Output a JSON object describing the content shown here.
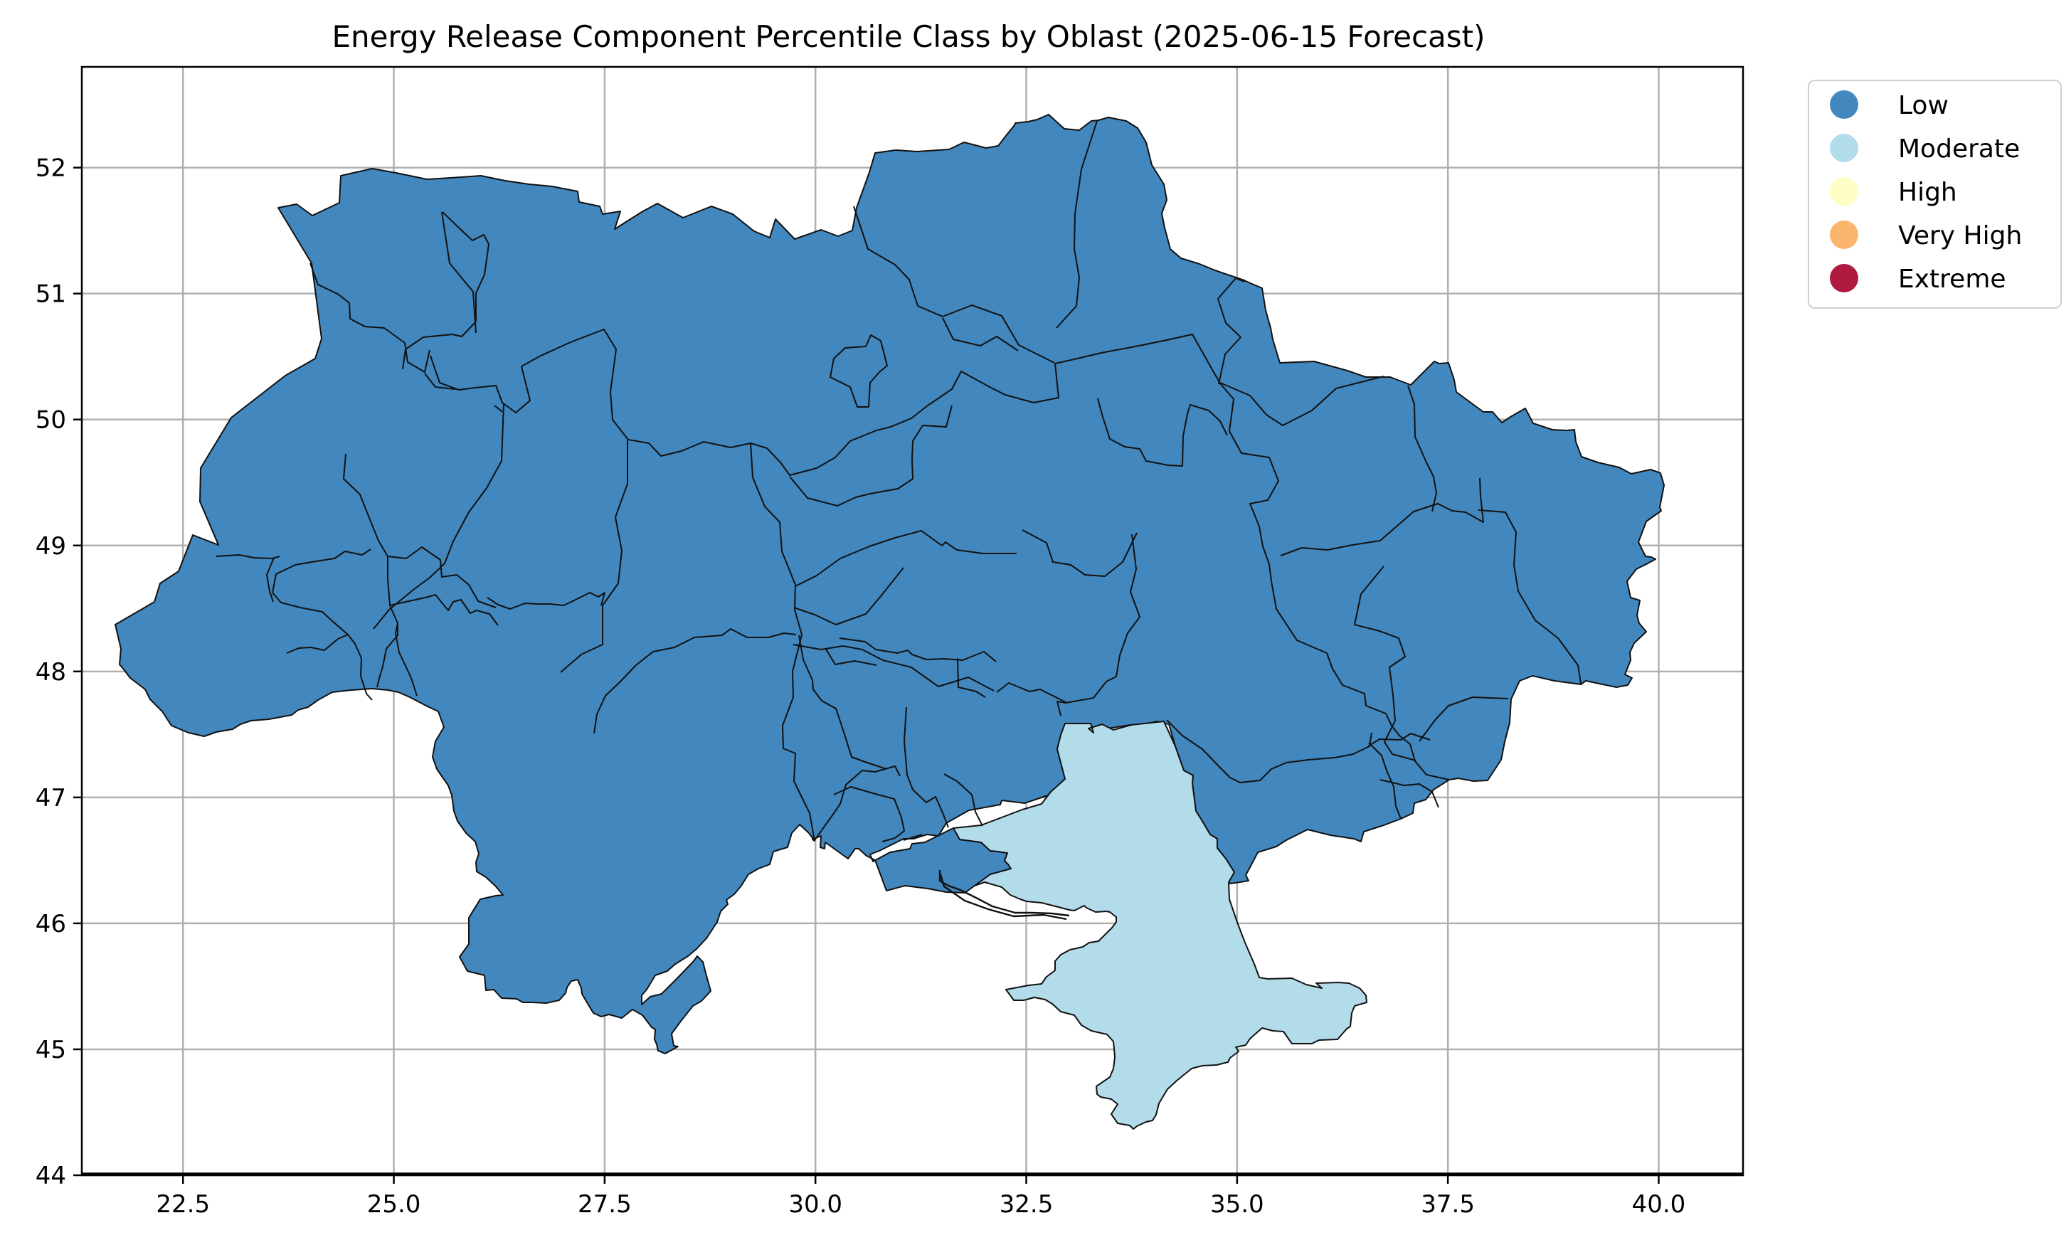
{
  "map": {
    "title": "Energy Release Component Percentile Class by Oblast (2025-06-15 Forecast)",
    "x_ticks": [
      "22.5",
      "25.0",
      "27.5",
      "30.0",
      "32.5",
      "35.0",
      "37.5",
      "40.0"
    ],
    "y_ticks": [
      "44",
      "45",
      "46",
      "47",
      "48",
      "49",
      "50",
      "51",
      "52"
    ],
    "x_range": [
      21.3,
      41.0
    ],
    "y_range": [
      44.0,
      52.8
    ],
    "grid": true
  },
  "legend": {
    "placement": "outside upper right",
    "items": [
      {
        "label": "Low",
        "color": "#4287bd"
      },
      {
        "label": "Moderate",
        "color": "#b3dcea"
      },
      {
        "label": "High",
        "color": "#fffec4"
      },
      {
        "label": "Very High",
        "color": "#fbb56c"
      },
      {
        "label": "Extreme",
        "color": "#b01a3f"
      }
    ]
  },
  "regions": {
    "mainland": {
      "class": "Low",
      "color": "#4287bd"
    },
    "south": {
      "class": "Moderate",
      "color": "#b3dcea"
    }
  }
}
